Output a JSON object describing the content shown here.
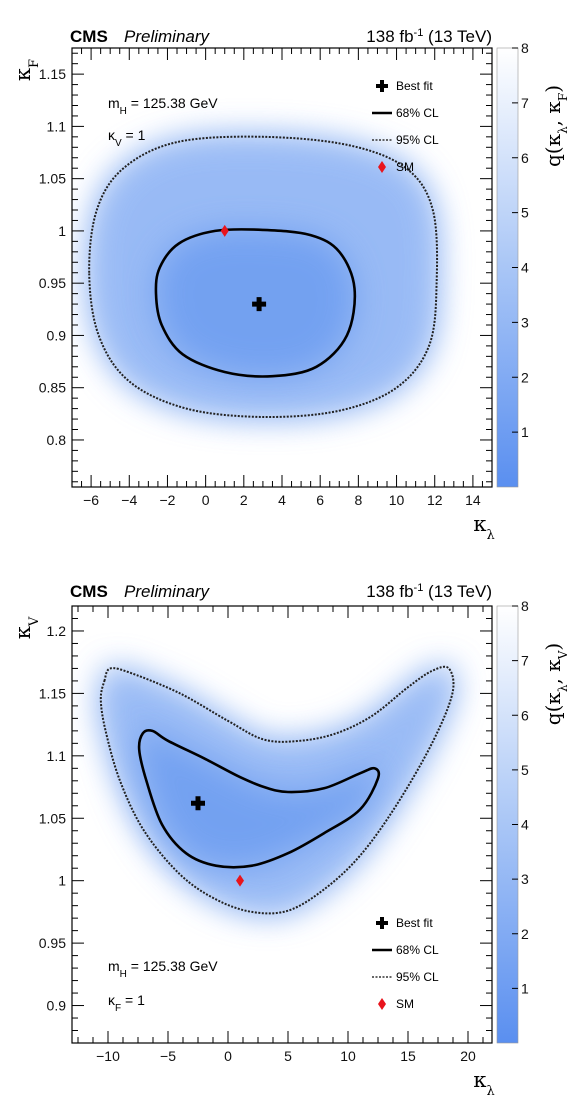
{
  "chart_data": [
    {
      "type": "heatmap",
      "experiment": "CMS",
      "status": "Preliminary",
      "luminosity": "138 fb",
      "lumi_exp": "-1",
      "energy": "(13 TeV)",
      "xlabel": "κ",
      "xlabel_sub": "λ",
      "ylabel": "κ",
      "ylabel_sub": "F",
      "zlabel": "q(κ",
      "zlabel_parts": [
        "λ",
        ", κ",
        "F",
        ")"
      ],
      "xlim": [
        -7,
        15
      ],
      "ylim": [
        0.755,
        1.175
      ],
      "xticks": [
        -6,
        -4,
        -2,
        0,
        2,
        4,
        6,
        8,
        10,
        12,
        14
      ],
      "yticks": [
        0.8,
        0.85,
        0.9,
        0.95,
        1,
        1.05,
        1.1,
        1.15
      ],
      "ytick_labels": [
        "0.8",
        "0.85",
        "0.9",
        "0.95",
        "1",
        "1.05",
        "1.1",
        "1.15"
      ],
      "zlim": [
        0,
        8
      ],
      "zticks": [
        1,
        2,
        3,
        4,
        5,
        6,
        7,
        8
      ],
      "annotations": [
        "m",
        "H",
        " = 125.38 GeV",
        "κ",
        "V",
        " = 1"
      ],
      "annotation_mass_label": "m",
      "annotation_mass_sub": "H",
      "annotation_mass_value": " = 125.38 GeV",
      "annotation_fixed_label": "κ",
      "annotation_fixed_sub": "V",
      "annotation_fixed_value": " = 1",
      "best_fit": {
        "x": 2.8,
        "y": 0.93
      },
      "sm_point": {
        "x": 1,
        "y": 1
      },
      "legend": [
        "Best fit",
        "68% CL",
        "95% CL",
        "SM"
      ],
      "legend_position": "top-right",
      "contour_68": [
        [
          -2.6,
          0.94
        ],
        [
          -2.4,
          0.965
        ],
        [
          -1.4,
          0.988
        ],
        [
          0.5,
          1.0
        ],
        [
          3,
          1.001
        ],
        [
          5.5,
          0.996
        ],
        [
          7,
          0.98
        ],
        [
          7.8,
          0.945
        ],
        [
          7.4,
          0.9
        ],
        [
          5.8,
          0.87
        ],
        [
          3.5,
          0.861
        ],
        [
          1,
          0.865
        ],
        [
          -1.2,
          0.882
        ],
        [
          -2.3,
          0.91
        ]
      ],
      "contour_95": [
        [
          -6.1,
          0.96
        ],
        [
          -5.7,
          1.02
        ],
        [
          -4.3,
          1.06
        ],
        [
          -1.5,
          1.085
        ],
        [
          3,
          1.09
        ],
        [
          7.5,
          1.082
        ],
        [
          10.5,
          1.06
        ],
        [
          11.9,
          1.02
        ],
        [
          12.1,
          0.95
        ],
        [
          11.7,
          0.89
        ],
        [
          10,
          0.85
        ],
        [
          7,
          0.828
        ],
        [
          3,
          0.822
        ],
        [
          -1,
          0.83
        ],
        [
          -4,
          0.856
        ],
        [
          -5.6,
          0.9
        ]
      ],
      "colormap": "white-to-blue (low q = blue)"
    },
    {
      "type": "heatmap",
      "experiment": "CMS",
      "status": "Preliminary",
      "luminosity": "138 fb",
      "lumi_exp": "-1",
      "energy": "(13 TeV)",
      "xlabel": "κ",
      "xlabel_sub": "λ",
      "ylabel": "κ",
      "ylabel_sub": "V",
      "zlabel": "q(κ",
      "zlabel_parts": [
        "λ",
        ", κ",
        "V",
        ")"
      ],
      "xlim": [
        -13,
        22
      ],
      "ylim": [
        0.87,
        1.22
      ],
      "xticks": [
        -10,
        -5,
        0,
        5,
        10,
        15,
        20
      ],
      "yticks": [
        0.9,
        0.95,
        1,
        1.05,
        1.1,
        1.15,
        1.2
      ],
      "ytick_labels": [
        "0.9",
        "0.95",
        "1",
        "1.05",
        "1.1",
        "1.15",
        "1.2"
      ],
      "zlim": [
        0,
        8
      ],
      "zticks": [
        1,
        2,
        3,
        4,
        5,
        6,
        7,
        8
      ],
      "annotation_mass_label": "m",
      "annotation_mass_sub": "H",
      "annotation_mass_value": " = 125.38 GeV",
      "annotation_fixed_label": "κ",
      "annotation_fixed_sub": "F",
      "annotation_fixed_value": " = 1",
      "best_fit": {
        "x": -2.5,
        "y": 1.062
      },
      "sm_point": {
        "x": 1,
        "y": 1
      },
      "legend": [
        "Best fit",
        "68% CL",
        "95% CL",
        "SM"
      ],
      "legend_position": "bottom-right",
      "contour_68": [
        [
          -7.1,
          1.118
        ],
        [
          -6.3,
          1.12
        ],
        [
          -5,
          1.112
        ],
        [
          -2,
          1.098
        ],
        [
          1,
          1.083
        ],
        [
          3,
          1.075
        ],
        [
          5,
          1.071
        ],
        [
          8,
          1.074
        ],
        [
          11,
          1.086
        ],
        [
          12.2,
          1.09
        ],
        [
          12.5,
          1.082
        ],
        [
          11,
          1.057
        ],
        [
          8,
          1.038
        ],
        [
          5,
          1.022
        ],
        [
          2,
          1.012
        ],
        [
          -1,
          1.012
        ],
        [
          -3.5,
          1.022
        ],
        [
          -5.5,
          1.045
        ],
        [
          -6.8,
          1.08
        ],
        [
          -7.4,
          1.105
        ]
      ],
      "contour_95": [
        [
          -10.3,
          1.16
        ],
        [
          -9.8,
          1.17
        ],
        [
          -8,
          1.166
        ],
        [
          -4,
          1.15
        ],
        [
          0,
          1.128
        ],
        [
          3,
          1.113
        ],
        [
          6,
          1.112
        ],
        [
          9,
          1.118
        ],
        [
          12,
          1.132
        ],
        [
          15,
          1.155
        ],
        [
          17,
          1.168
        ],
        [
          18.4,
          1.17
        ],
        [
          18.7,
          1.15
        ],
        [
          17,
          1.11
        ],
        [
          14,
          1.06
        ],
        [
          11,
          1.02
        ],
        [
          8,
          0.993
        ],
        [
          5,
          0.976
        ],
        [
          2,
          0.975
        ],
        [
          -1,
          0.985
        ],
        [
          -4,
          1.005
        ],
        [
          -7,
          1.04
        ],
        [
          -9,
          1.08
        ],
        [
          -10.2,
          1.12
        ],
        [
          -10.6,
          1.145
        ]
      ],
      "colormap": "white-to-blue (low q = blue)"
    }
  ]
}
